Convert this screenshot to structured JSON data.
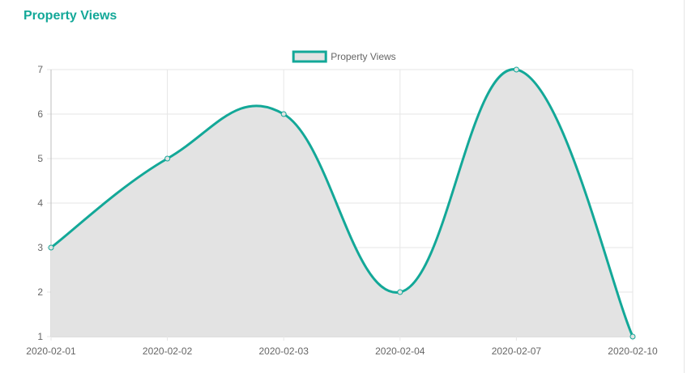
{
  "page": {
    "title": "Property Views"
  },
  "colors": {
    "line": "#13a898",
    "fill": "#e3e3e3",
    "grid": "#e6e6e6",
    "axis": "#bdbdbd",
    "text": "#666666"
  },
  "chart_data": {
    "type": "line",
    "title": "",
    "xlabel": "",
    "ylabel": "",
    "categories": [
      "2020-02-01",
      "2020-02-02",
      "2020-02-03",
      "2020-02-04",
      "2020-02-07",
      "2020-02-10"
    ],
    "series": [
      {
        "name": "Property Views",
        "values": [
          3,
          5,
          6,
          2,
          7,
          1
        ]
      }
    ],
    "ylim": [
      1,
      7
    ],
    "yticks": [
      1,
      2,
      3,
      4,
      5,
      6,
      7
    ],
    "grid": true,
    "legend_position": "top-center",
    "filled": true,
    "curve": "smooth"
  }
}
